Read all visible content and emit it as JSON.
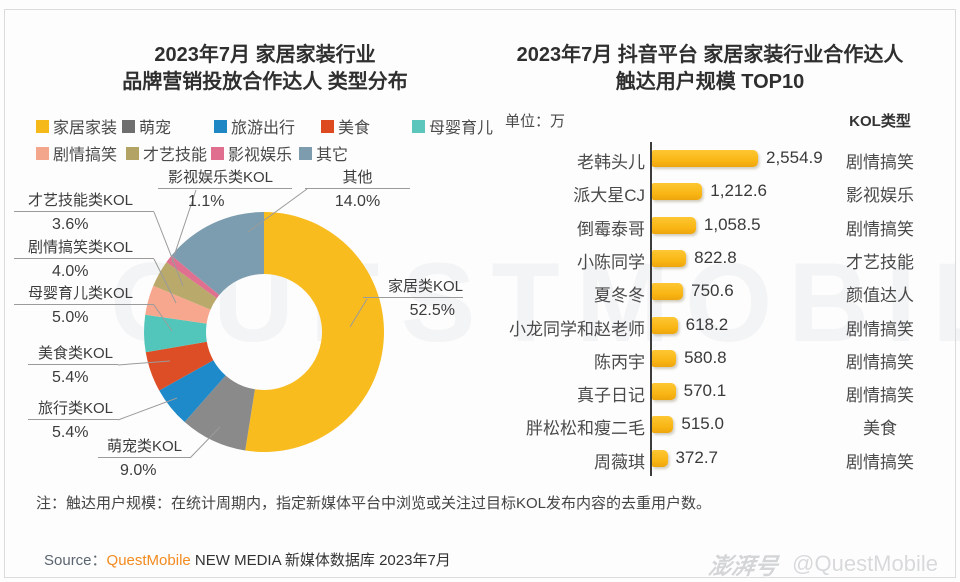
{
  "chart_data": [
    {
      "type": "pie",
      "donut": true,
      "start_angle": 0,
      "direction": "clockwise",
      "title": "2023年7月 家居家装行业 品牌营销投放合作达人 类型分布",
      "title_lines": [
        "2023年7月 家居家装行业",
        "品牌营销投放合作达人 类型分布"
      ],
      "legend_position": "top",
      "legend": [
        {
          "label": "家居家装",
          "color": "#f5b919"
        },
        {
          "label": "萌宠",
          "color": "#6e6e6e"
        },
        {
          "label": "旅游出行",
          "color": "#1e87c4"
        },
        {
          "label": "美食",
          "color": "#dd4a1f"
        },
        {
          "label": "母婴育儿",
          "color": "#5cc6bd"
        },
        {
          "label": "剧情搞笑",
          "color": "#f4a68c"
        },
        {
          "label": "才艺技能",
          "color": "#b3a465"
        },
        {
          "label": "影视娱乐",
          "color": "#e06e8e"
        },
        {
          "label": "其它",
          "color": "#7d9dae"
        }
      ],
      "segments": [
        {
          "label": "家居类KOL",
          "value": 52.5,
          "value_label": "52.5%",
          "color": "#f9bc1f"
        },
        {
          "label": "萌宠类KOL",
          "value": 9.0,
          "value_label": "9.0%",
          "color": "#8a8a8a"
        },
        {
          "label": "旅行类KOL",
          "value": 5.4,
          "value_label": "5.4%",
          "color": "#1f8ac9"
        },
        {
          "label": "美食类KOL",
          "value": 5.4,
          "value_label": "5.4%",
          "color": "#de4e26"
        },
        {
          "label": "母婴育儿类KOL",
          "value": 5.0,
          "value_label": "5.0%",
          "color": "#52c6ba"
        },
        {
          "label": "剧情搞笑类KOL",
          "value": 4.0,
          "value_label": "4.0%",
          "color": "#f7a78d"
        },
        {
          "label": "才艺技能类KOL",
          "value": 3.6,
          "value_label": "3.6%",
          "color": "#b9a96a"
        },
        {
          "label": "影视娱乐类KOL",
          "value": 1.1,
          "value_label": "1.1%",
          "color": "#e0708f"
        },
        {
          "label": "其他",
          "value": 14.0,
          "value_label": "14.0%",
          "color": "#7c9daf"
        }
      ]
    },
    {
      "type": "bar",
      "orientation": "horizontal",
      "title": "2023年7月 抖音平台 家居家装行业合作达人 触达用户规模 TOP10",
      "title_lines": [
        "2023年7月 抖音平台 家居家装行业合作达人",
        "触达用户规模 TOP10"
      ],
      "unit": "单位：万",
      "kol_type_header": "KOL类型",
      "xlim": [
        0,
        2600
      ],
      "bar_color": "#fbb90e",
      "categories": [
        "老韩头儿",
        "派大星CJ",
        "倒霉泰哥",
        "小陈同学",
        "夏冬冬",
        "小龙同学和赵老师",
        "陈丙宇",
        "真子日记",
        "胖松松和瘦二毛",
        "周薇琪"
      ],
      "values": [
        2554.9,
        1212.6,
        1058.5,
        822.8,
        750.6,
        618.2,
        580.8,
        570.1,
        515.0,
        372.7
      ],
      "value_labels": [
        "2,554.9",
        "1,212.6",
        "1,058.5",
        "822.8",
        "750.6",
        "618.2",
        "580.8",
        "570.1",
        "515.0",
        "372.7"
      ],
      "kol_types": [
        "剧情搞笑",
        "影视娱乐",
        "剧情搞笑",
        "才艺技能",
        "颜值达人",
        "剧情搞笑",
        "剧情搞笑",
        "剧情搞笑",
        "美食",
        "剧情搞笑"
      ]
    }
  ],
  "note": "注：触达用户规模：在统计周期内，指定新媒体平台中浏览或关注过目标KOL发布内容的去重用户数。",
  "source": {
    "prefix": "Source：",
    "brand": "QuestMobile",
    "suffix": " NEW MEDIA 新媒体数据库 2023年7月"
  },
  "watermark": {
    "logo": "澎湃号",
    "handle": "@QuestMobile",
    "ghost": "QUESTMOBILE"
  }
}
